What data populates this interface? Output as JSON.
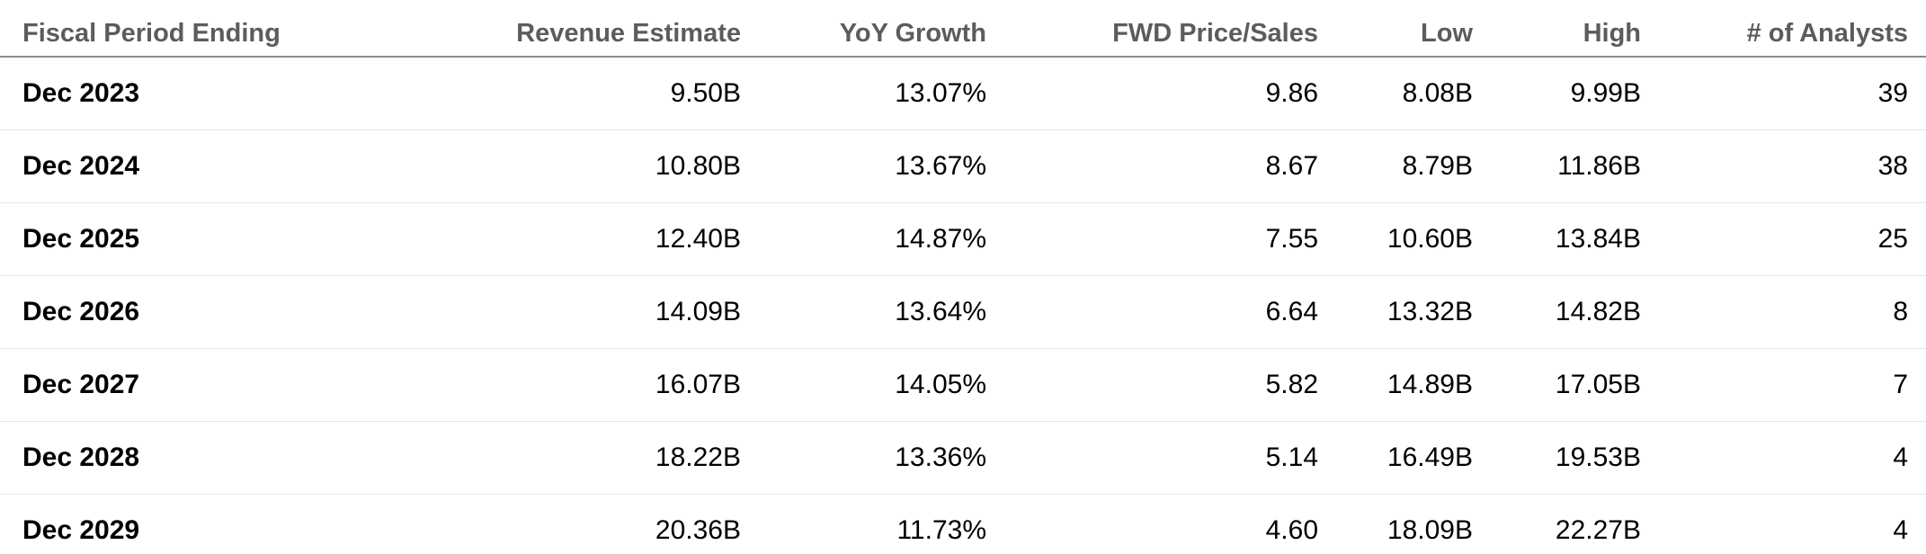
{
  "chart_data": {
    "type": "table",
    "title": "Revenue Estimates by Fiscal Period",
    "columns": [
      "Fiscal Period Ending",
      "Revenue Estimate",
      "YoY Growth",
      "FWD Price/Sales",
      "Low",
      "High",
      "# of Analysts"
    ],
    "rows": [
      [
        "Dec 2023",
        "9.50B",
        "13.07%",
        "9.86",
        "8.08B",
        "9.99B",
        "39"
      ],
      [
        "Dec 2024",
        "10.80B",
        "13.67%",
        "8.67",
        "8.79B",
        "11.86B",
        "38"
      ],
      [
        "Dec 2025",
        "12.40B",
        "14.87%",
        "7.55",
        "10.60B",
        "13.84B",
        "25"
      ],
      [
        "Dec 2026",
        "14.09B",
        "13.64%",
        "6.64",
        "13.32B",
        "14.82B",
        "8"
      ],
      [
        "Dec 2027",
        "16.07B",
        "14.05%",
        "5.82",
        "14.89B",
        "17.05B",
        "7"
      ],
      [
        "Dec 2028",
        "18.22B",
        "13.36%",
        "5.14",
        "16.49B",
        "19.53B",
        "4"
      ],
      [
        "Dec 2029",
        "20.36B",
        "11.73%",
        "4.60",
        "18.09B",
        "22.27B",
        "4"
      ]
    ]
  },
  "colors": {
    "background": "#ffffff",
    "header_text": "#5c5c5c",
    "header_rule": "#8c8c8c",
    "row_divider": "#e5e5e5",
    "body_text": "#000000"
  }
}
